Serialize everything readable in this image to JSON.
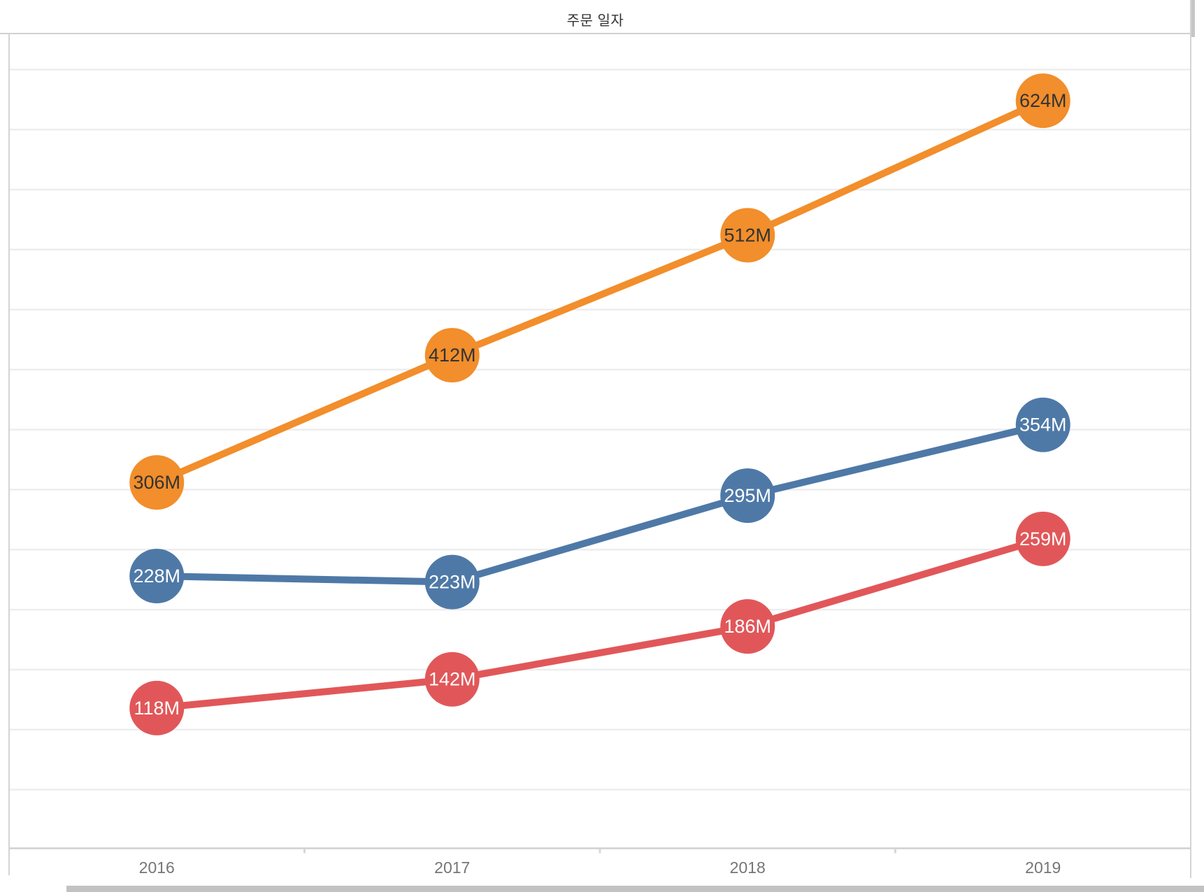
{
  "chart_data": {
    "type": "line",
    "title": "주문 일자",
    "xlabel": "",
    "ylabel": "",
    "categories": [
      "2016",
      "2017",
      "2018",
      "2019"
    ],
    "unit": "M",
    "ylim": [
      0,
      680
    ],
    "gridline_step": 50,
    "grid": true,
    "legend": "none",
    "series": [
      {
        "name": "orange",
        "color": "#F28E2B",
        "label_text_color": "#333333",
        "values": [
          306,
          412,
          512,
          624
        ],
        "point_labels": [
          "306M",
          "412M",
          "512M",
          "624M"
        ]
      },
      {
        "name": "blue",
        "color": "#4E79A7",
        "label_text_color": "#FFFFFF",
        "values": [
          228,
          223,
          295,
          354
        ],
        "point_labels": [
          "228M",
          "223M",
          "295M",
          "354M"
        ]
      },
      {
        "name": "red",
        "color": "#E15759",
        "label_text_color": "#FFFFFF",
        "values": [
          118,
          142,
          186,
          259
        ],
        "point_labels": [
          "118M",
          "142M",
          "186M",
          "259M"
        ]
      }
    ]
  },
  "colors": {
    "title_text": "#333333",
    "axis_label": "#767676",
    "gridline": "#ededed",
    "axis_line": "#d0d0d0",
    "divider": "#d0d0d0",
    "border": "#d4d4d4",
    "tick": "#d8d8d8",
    "scrollbar_thumb": "#c2c2c2"
  }
}
